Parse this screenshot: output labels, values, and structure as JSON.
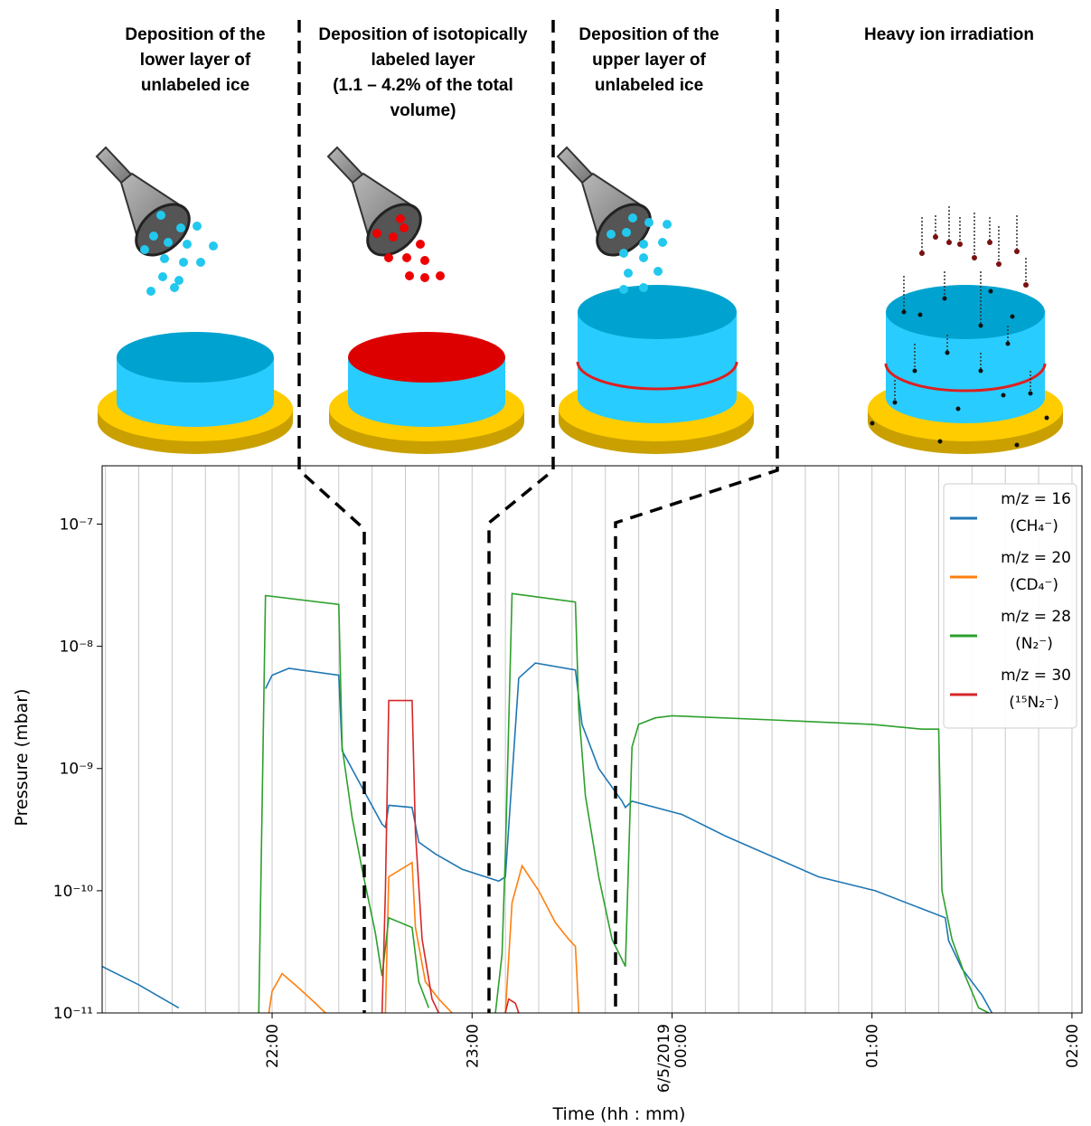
{
  "illustration": {
    "panels": [
      {
        "title": [
          "Deposition of the",
          "lower layer of",
          "unlabeled ice"
        ]
      },
      {
        "title": [
          "Deposition of isotopically",
          "labeled layer",
          "(1.1 – 4.2% of the total",
          "volume)"
        ]
      },
      {
        "title": [
          "Deposition of the",
          "upper layer of",
          "unlabeled ice"
        ]
      },
      {
        "title": [
          "Heavy ion irradiation"
        ]
      }
    ]
  },
  "chart_data": {
    "type": "line",
    "xlabel": "Time (hh : mm)",
    "ylabel": "Pressure (mbar)",
    "xlim": [
      "21:09",
      "02:03"
    ],
    "xticks": [
      "22:00",
      "23:00",
      {
        "value": "00:00",
        "label": [
          "6/5/2019",
          "00:00"
        ]
      },
      "01:00",
      "02:00"
    ],
    "xgrid_step_minutes": 10,
    "log_y": true,
    "ylim": [
      1e-11,
      3e-07
    ],
    "yticks": [
      {
        "value": 1e-11,
        "label": "10⁻¹¹"
      },
      {
        "value": 1e-10,
        "label": "10⁻¹⁰"
      },
      {
        "value": 1e-09,
        "label": "10⁻⁹"
      },
      {
        "value": 1e-08,
        "label": "10⁻⁸"
      },
      {
        "value": 1e-07,
        "label": "10⁻⁷"
      }
    ],
    "grid": "x",
    "legend": "upper right",
    "series": [
      {
        "name": "m/z = 16",
        "formula": "(CH₄⁻)",
        "color": "#1f77b4",
        "x": [
          "21:09",
          "21:20",
          "21:32",
          null,
          "21:58",
          "22:00",
          "22:05",
          "22:20",
          "22:21",
          "22:27",
          "22:33",
          "22:34",
          "22:35",
          "22:42",
          "22:44",
          "22:49",
          "22:57",
          "23:08",
          "23:10",
          "23:14",
          "23:19",
          "23:31",
          "23:33",
          "23:38",
          "23:45",
          "23:46",
          "23:48",
          "00:03",
          "00:16",
          "00:44",
          "01:01",
          "01:22",
          "01:23",
          "01:27",
          "01:33",
          "01:36"
        ],
        "values": [
          2.4e-11,
          1.7e-11,
          1.1e-11,
          null,
          4.5e-09,
          5.8e-09,
          6.6e-09,
          5.8e-09,
          1.4e-09,
          7e-10,
          3.5e-10,
          3.3e-10,
          5e-10,
          4.8e-10,
          2.5e-10,
          2e-10,
          1.5e-10,
          1.2e-10,
          1.3e-10,
          5.5e-09,
          7.3e-09,
          6.4e-09,
          2.3e-09,
          1e-09,
          5.4e-10,
          4.8e-10,
          5.4e-10,
          4.2e-10,
          2.8e-10,
          1.3e-10,
          1e-10,
          6e-11,
          3.9e-11,
          2.3e-11,
          1.4e-11,
          1e-11
        ]
      },
      {
        "name": "m/z = 20",
        "formula": "(CD₄⁻)",
        "color": "#ff7f0e",
        "x": [
          "21:59",
          "22:00",
          "22:03",
          "22:08",
          "22:13",
          "22:16",
          null,
          "22:34",
          "22:35",
          "22:42",
          "22:43",
          "22:46",
          "22:50",
          "22:54",
          null,
          "23:10",
          "23:12",
          "23:15",
          "23:20",
          "23:25",
          "23:29",
          "23:31",
          "23:32"
        ],
        "values": [
          1e-11,
          1.5e-11,
          2.1e-11,
          1.6e-11,
          1.2e-11,
          1e-11,
          null,
          1e-11,
          1.3e-10,
          1.7e-10,
          5e-11,
          1.8e-11,
          1.3e-11,
          1e-11,
          null,
          1e-11,
          8e-11,
          1.6e-10,
          1e-10,
          5.5e-11,
          4e-11,
          3.5e-11,
          1e-11
        ]
      },
      {
        "name": "m/z = 28",
        "formula": "(N₂⁻)",
        "color": "#2ca02c",
        "x": [
          "21:56",
          "21:57",
          "21:58",
          "22:20",
          "22:21",
          "22:24",
          "22:27",
          "22:31",
          "22:33",
          "22:35",
          "22:42",
          "22:44",
          "22:47",
          null,
          "23:07",
          "23:09",
          "23:10",
          "23:12",
          "23:31",
          "23:32",
          "23:34",
          "23:38",
          "23:42",
          "23:46",
          "23:48",
          "23:50",
          "23:55",
          "00:00",
          "00:30",
          "01:00",
          "01:15",
          "01:20",
          "01:21",
          "01:24",
          "01:28",
          "01:32",
          "01:35"
        ],
        "values": [
          1e-11,
          5e-10,
          2.6e-08,
          2.2e-08,
          1.5e-09,
          4e-10,
          1.5e-10,
          4.5e-11,
          2e-11,
          6e-11,
          5e-11,
          1.8e-11,
          1.1e-11,
          null,
          1e-11,
          3e-11,
          2e-10,
          2.7e-08,
          2.3e-08,
          3e-09,
          6e-10,
          1.3e-10,
          4e-11,
          2.4e-11,
          1.5e-09,
          2.3e-09,
          2.6e-09,
          2.7e-09,
          2.5e-09,
          2.3e-09,
          2.1e-09,
          2.1e-09,
          1e-10,
          4e-11,
          2e-11,
          1.1e-11,
          1e-11
        ]
      },
      {
        "name": "m/z = 30",
        "formula": "(¹⁵N₂⁻)",
        "color": "#d62728",
        "x": [
          "22:33",
          "22:34",
          "22:35",
          "22:42",
          "22:43",
          "22:45",
          "22:48",
          "22:50",
          null,
          "23:10",
          "23:11",
          "23:13",
          "23:14"
        ],
        "values": [
          1e-11,
          1e-10,
          3.6e-09,
          3.6e-09,
          3e-10,
          4e-11,
          1.3e-11,
          1e-11,
          null,
          1e-11,
          1.3e-11,
          1.2e-11,
          1e-11
        ]
      }
    ]
  }
}
